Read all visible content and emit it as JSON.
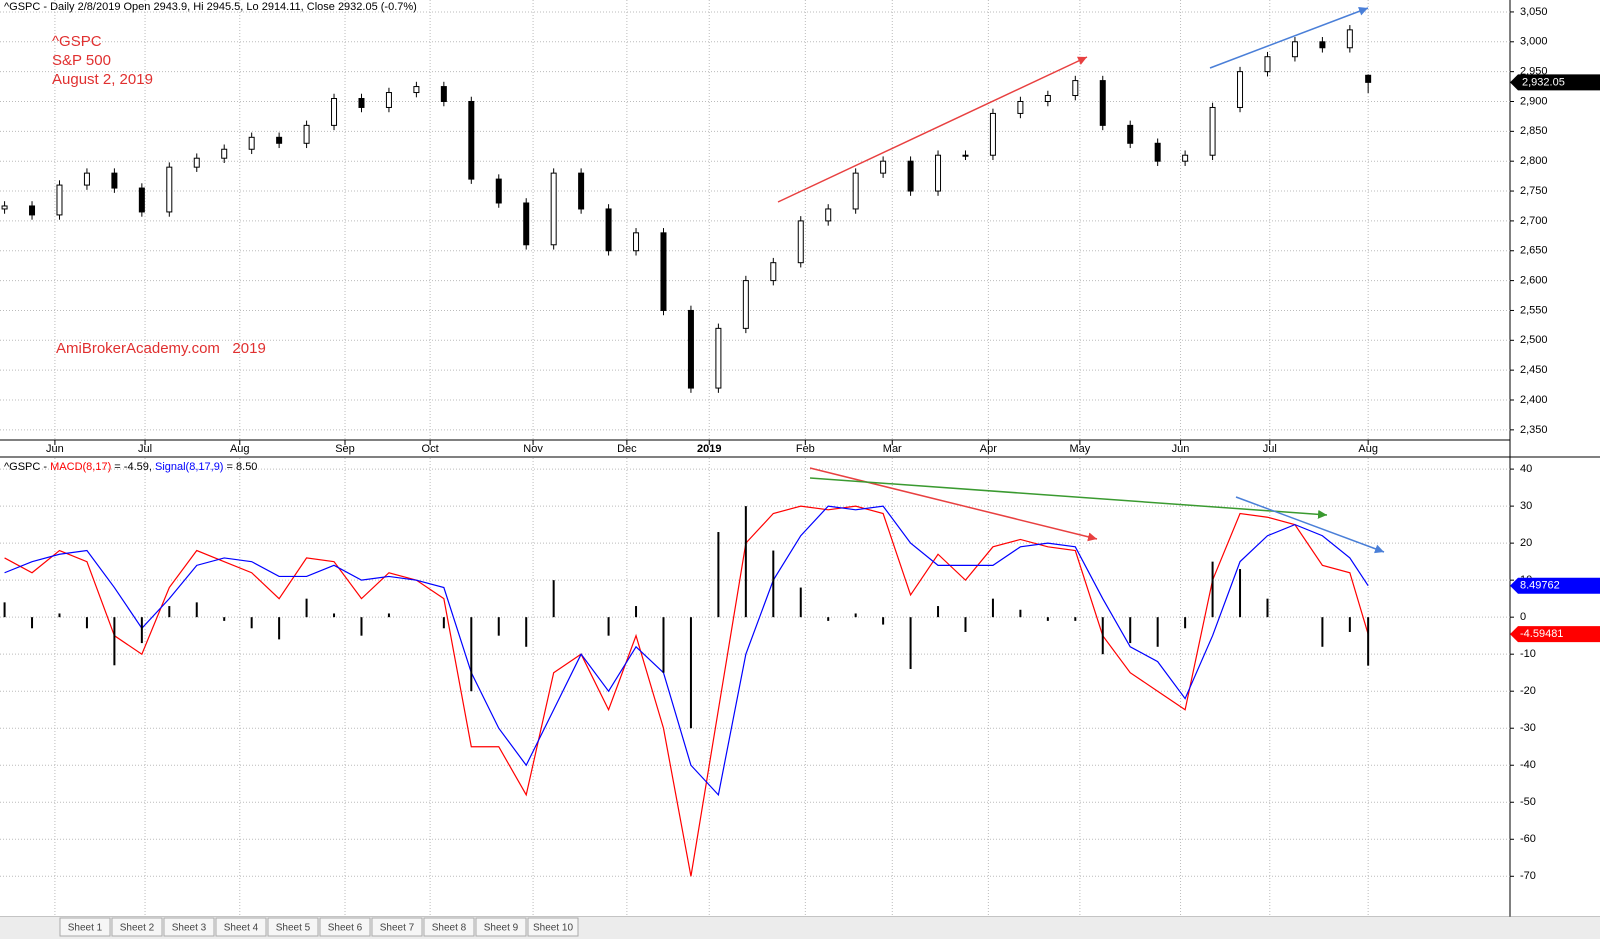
{
  "chart_data": [
    {
      "type": "candlestick",
      "title": "^GSPC - Daily 2/8/2019 Open 2943.9, Hi 2945.5, Lo 2914.11, Close 2932.05 (-0.7%)",
      "annotations": [
        "^GSPC",
        "S&P 500",
        "August 2, 2019",
        "AmiBrokerAcademy.com   2019"
      ],
      "last_value_label": "2,932.05",
      "x": [
        1,
        7,
        13,
        19,
        25,
        31,
        37,
        43,
        49,
        55,
        61,
        67,
        73,
        79,
        85,
        91,
        97,
        103,
        109,
        115,
        121,
        127,
        133,
        139,
        145,
        151,
        157,
        163,
        169,
        175,
        181,
        187,
        193,
        199,
        205,
        211,
        217,
        223,
        229,
        235,
        241,
        247,
        253,
        259,
        265,
        271,
        277,
        283,
        289,
        295,
        299
      ],
      "open": [
        2720,
        2725,
        2710,
        2760,
        2780,
        2755,
        2715,
        2790,
        2805,
        2820,
        2840,
        2830,
        2860,
        2905,
        2890,
        2915,
        2925,
        2900,
        2770,
        2730,
        2660,
        2780,
        2720,
        2650,
        2680,
        2550,
        2420,
        2520,
        2600,
        2630,
        2700,
        2720,
        2780,
        2800,
        2750,
        2810,
        2810,
        2880,
        2900,
        2910,
        2935,
        2860,
        2830,
        2800,
        2810,
        2890,
        2950,
        2975,
        3000,
        2990,
        2943.9
      ],
      "high": [
        2733,
        2733,
        2768,
        2788,
        2788,
        2763,
        2798,
        2813,
        2828,
        2848,
        2848,
        2868,
        2913,
        2913,
        2923,
        2933,
        2933,
        2908,
        2778,
        2738,
        2788,
        2788,
        2728,
        2688,
        2688,
        2558,
        2528,
        2608,
        2638,
        2708,
        2728,
        2788,
        2808,
        2808,
        2818,
        2818,
        2888,
        2908,
        2918,
        2943,
        2943,
        2868,
        2838,
        2818,
        2898,
        2958,
        2983,
        3008,
        3008,
        3028,
        2945.5
      ],
      "low": [
        2712,
        2702,
        2702,
        2752,
        2747,
        2707,
        2707,
        2782,
        2797,
        2812,
        2822,
        2822,
        2852,
        2882,
        2882,
        2907,
        2892,
        2762,
        2722,
        2652,
        2652,
        2712,
        2642,
        2642,
        2542,
        2412,
        2412,
        2512,
        2592,
        2622,
        2692,
        2712,
        2772,
        2742,
        2742,
        2802,
        2802,
        2872,
        2892,
        2902,
        2852,
        2822,
        2792,
        2792,
        2802,
        2882,
        2942,
        2967,
        2982,
        2982,
        2914.11
      ],
      "close": [
        2725,
        2710,
        2760,
        2780,
        2755,
        2715,
        2790,
        2805,
        2820,
        2840,
        2830,
        2860,
        2905,
        2890,
        2915,
        2925,
        2900,
        2770,
        2730,
        2660,
        2780,
        2720,
        2650,
        2680,
        2550,
        2420,
        2520,
        2600,
        2630,
        2700,
        2720,
        2780,
        2800,
        2750,
        2810,
        2810,
        2880,
        2900,
        2910,
        2935,
        2860,
        2830,
        2800,
        2810,
        2890,
        2950,
        2975,
        3000,
        2990,
        3020,
        2932.05
      ],
      "xlim": [
        0,
        330
      ],
      "xticks": [
        {
          "value": 12,
          "label": "Jun"
        },
        {
          "value": 31.7,
          "label": "Jul"
        },
        {
          "value": 52.4,
          "label": "Aug"
        },
        {
          "value": 75.4,
          "label": "Sep"
        },
        {
          "value": 94,
          "label": "Oct"
        },
        {
          "value": 116.5,
          "label": "Nov"
        },
        {
          "value": 137,
          "label": "Dec"
        },
        {
          "value": 155,
          "label": "2019"
        },
        {
          "value": 176,
          "label": "Feb"
        },
        {
          "value": 195,
          "label": "Mar"
        },
        {
          "value": 216,
          "label": "Apr"
        },
        {
          "value": 236,
          "label": "May"
        },
        {
          "value": 258,
          "label": "Jun"
        },
        {
          "value": 277.5,
          "label": "Jul"
        },
        {
          "value": 299,
          "label": "Aug"
        }
      ],
      "ylim": [
        2333,
        3070
      ],
      "yticks": [
        {
          "value": 2350,
          "label": "2,350"
        },
        {
          "value": 2400,
          "label": "2,400"
        },
        {
          "value": 2450,
          "label": "2,450"
        },
        {
          "value": 2500,
          "label": "2,500"
        },
        {
          "value": 2550,
          "label": "2,550"
        },
        {
          "value": 2600,
          "label": "2,600"
        },
        {
          "value": 2650,
          "label": "2,650"
        },
        {
          "value": 2700,
          "label": "2,700"
        },
        {
          "value": 2750,
          "label": "2,750"
        },
        {
          "value": 2800,
          "label": "2,800"
        },
        {
          "value": 2850,
          "label": "2,850"
        },
        {
          "value": 2900,
          "label": "2,900"
        },
        {
          "value": 2950,
          "label": "2,950"
        },
        {
          "value": 3000,
          "label": "3,000"
        },
        {
          "value": 3050,
          "label": "3,050"
        }
      ],
      "grid": true
    },
    {
      "type": "macd",
      "title_parts": [
        "^GSPC - ",
        "MACD(8,17)",
        " = -4.59, ",
        "Signal(8,17,9)",
        " = 8.50"
      ],
      "x": [
        1,
        7,
        13,
        19,
        25,
        31,
        37,
        43,
        49,
        55,
        61,
        67,
        73,
        79,
        85,
        91,
        97,
        103,
        109,
        115,
        121,
        127,
        133,
        139,
        145,
        151,
        157,
        163,
        169,
        175,
        181,
        187,
        193,
        199,
        205,
        211,
        217,
        223,
        229,
        235,
        241,
        247,
        253,
        259,
        265,
        271,
        277,
        283,
        289,
        295,
        299
      ],
      "series": [
        {
          "name": "MACD(8,17)",
          "color": "#ff0000",
          "values": [
            16,
            12,
            18,
            15,
            -5,
            -10,
            8,
            18,
            15,
            12,
            5,
            16,
            15,
            5,
            12,
            10,
            5,
            -35,
            -35,
            -48,
            -15,
            -10,
            -25,
            -5,
            -30,
            -70,
            -25,
            20,
            28,
            30,
            29,
            30,
            28,
            6,
            17,
            10,
            19,
            21,
            19,
            18,
            -5,
            -15,
            -20,
            -25,
            10,
            28,
            27,
            25,
            14,
            12,
            -4.59
          ],
          "last_label": "-4.59481"
        },
        {
          "name": "Signal(8,17,9)",
          "color": "#0000ff",
          "values": [
            12,
            15,
            17,
            18,
            8,
            -3,
            5,
            14,
            16,
            15,
            11,
            11,
            14,
            10,
            11,
            10,
            8,
            -15,
            -30,
            -40,
            -25,
            -10,
            -20,
            -8,
            -15,
            -40,
            -48,
            -10,
            10,
            22,
            30,
            29,
            30,
            20,
            14,
            14,
            14,
            19,
            20,
            19,
            5,
            -8,
            -12,
            -22,
            -5,
            15,
            22,
            25,
            22,
            16,
            8.5
          ],
          "last_label": "8.49762"
        },
        {
          "name": "Histogram",
          "color": "#000000",
          "values": [
            4,
            -3,
            1,
            -3,
            -13,
            -7,
            3,
            4,
            -1,
            -3,
            -6,
            5,
            1,
            -5,
            1,
            0,
            -3,
            -20,
            -5,
            -8,
            10,
            0,
            -5,
            3,
            -15,
            -30,
            23,
            30,
            18,
            8,
            -1,
            1,
            -2,
            -14,
            3,
            -4,
            5,
            2,
            -1,
            -1,
            -10,
            -7,
            -8,
            -3,
            15,
            13,
            5,
            0,
            -8,
            -4,
            -13.09
          ]
        }
      ],
      "xlim": [
        0,
        330
      ],
      "ylim": [
        -81,
        43
      ],
      "yticks": [
        -70,
        -60,
        -50,
        -40,
        -30,
        -20,
        -10,
        0,
        10,
        20,
        30,
        40
      ],
      "grid": true
    }
  ],
  "tabs": [
    "Sheet 1",
    "Sheet 2",
    "Sheet 3",
    "Sheet 4",
    "Sheet 5",
    "Sheet 6",
    "Sheet 7",
    "Sheet 8",
    "Sheet 9",
    "Sheet 10"
  ]
}
